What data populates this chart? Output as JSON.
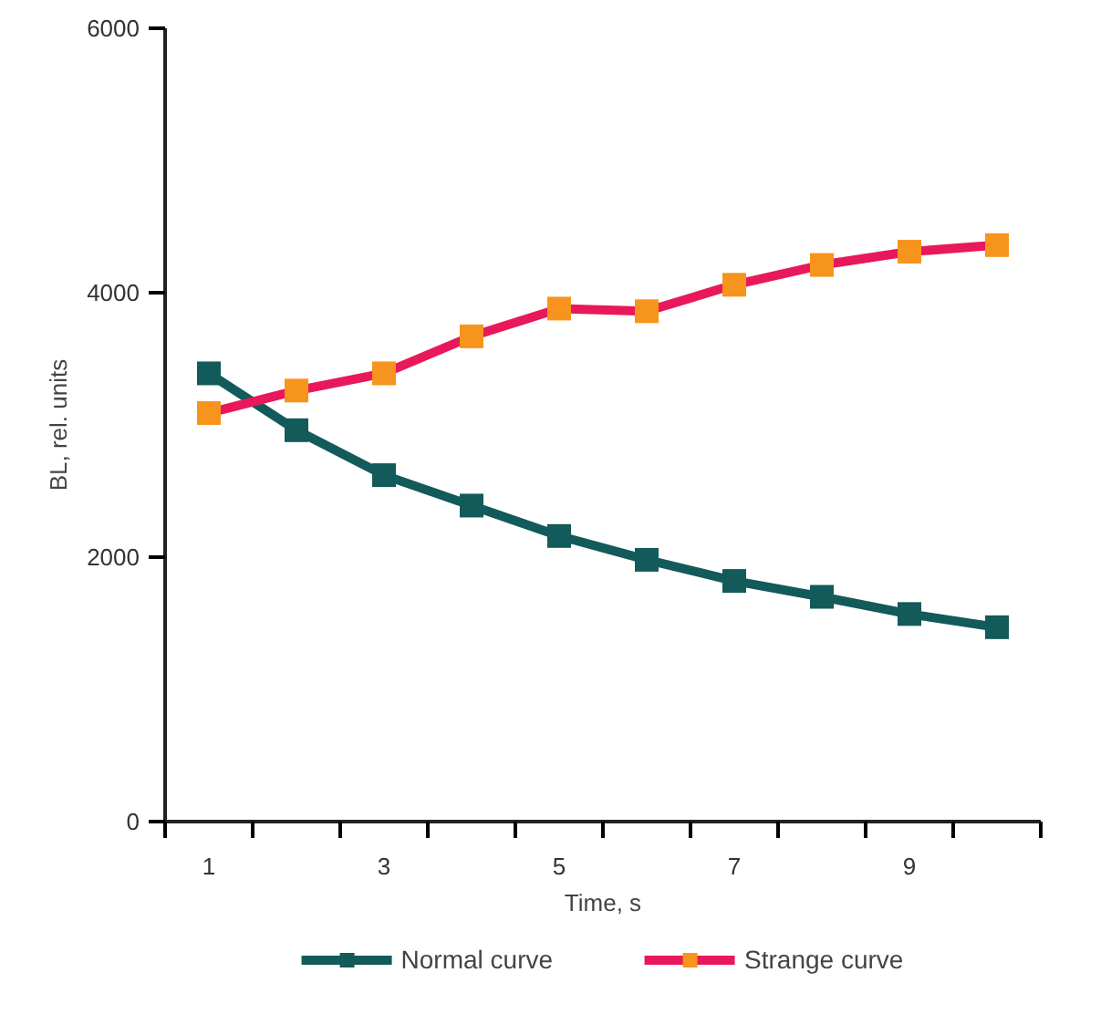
{
  "chart_data": {
    "type": "line",
    "xlabel": "Time, s",
    "ylabel": "BL, rel. units",
    "x": [
      1,
      2,
      3,
      4,
      5,
      6,
      7,
      8,
      9,
      10
    ],
    "xlim": [
      0.5,
      10.5
    ],
    "xticks": [
      {
        "value": 0.5,
        "label": null
      },
      {
        "value": 1,
        "label": "1"
      },
      {
        "value": 1.5,
        "label": null
      },
      {
        "value": 2.5,
        "label": null
      },
      {
        "value": 3,
        "label": "3"
      },
      {
        "value": 3.5,
        "label": null
      },
      {
        "value": 4.5,
        "label": null
      },
      {
        "value": 5,
        "label": "5"
      },
      {
        "value": 5.5,
        "label": null
      },
      {
        "value": 6.5,
        "label": null
      },
      {
        "value": 7,
        "label": "7"
      },
      {
        "value": 7.5,
        "label": null
      },
      {
        "value": 8.5,
        "label": null
      },
      {
        "value": 9,
        "label": "9"
      },
      {
        "value": 9.5,
        "label": null
      },
      {
        "value": 10.5,
        "label": null
      }
    ],
    "ylim": [
      0,
      6000
    ],
    "yticks": [
      0,
      2000,
      4000,
      6000
    ],
    "grid": false,
    "legend": "bottom",
    "marker": "square",
    "line_style": "solid",
    "series": [
      {
        "name": "Normal curve",
        "color": "#135a5a",
        "values": [
          3390,
          2960,
          2620,
          2390,
          2160,
          1980,
          1820,
          1700,
          1570,
          1470
        ]
      },
      {
        "name": "Strange curve",
        "color": "#e8185a",
        "colors": [
          "#f7941d",
          "#f7941d",
          "#f7941d",
          "#f7941d",
          "#f7941d",
          "#f7941d",
          "#f7941d",
          "#f7941d",
          "#f7941d",
          "#f7941d"
        ],
        "values": [
          3090,
          3260,
          3390,
          3670,
          3880,
          3860,
          4060,
          4210,
          4310,
          4360
        ]
      }
    ]
  }
}
